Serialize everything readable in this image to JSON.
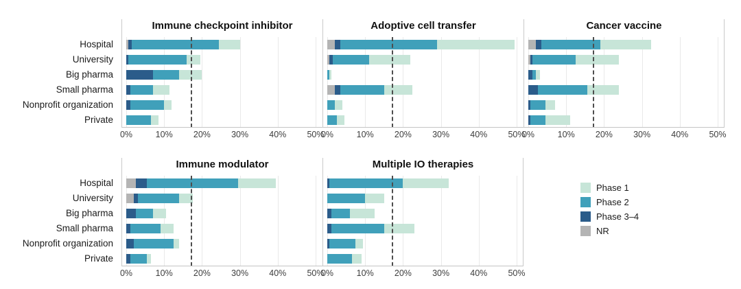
{
  "chart_data": {
    "type": "bar",
    "stacked": true,
    "orientation": "horizontal",
    "categories": [
      "Hospital",
      "University",
      "Big pharma",
      "Small pharma",
      "Nonprofit organization",
      "Private"
    ],
    "series": [
      {
        "name": "NR",
        "color": "#b4b4b4"
      },
      {
        "name": "Phase 3–4",
        "color": "#2b5c8a"
      },
      {
        "name": "Phase 2",
        "color": "#40a0ba"
      },
      {
        "name": "Phase 1",
        "color": "#c7e5d8"
      }
    ],
    "legend_order": [
      "Phase 1",
      "Phase 2",
      "Phase 3–4",
      "NR"
    ],
    "legend_position": "bottom-right",
    "x_tick_labels": [
      "0%",
      "10%",
      "20%",
      "30%",
      "40%",
      "50%"
    ],
    "xlim": [
      0,
      50
    ],
    "unit": "%",
    "grid": true,
    "reference_line_pct": 17,
    "panels": [
      {
        "title": "Immune checkpoint inhibitor",
        "values": [
          [
            0.5,
            1,
            23,
            5.5
          ],
          [
            0,
            0.5,
            15.5,
            3.5
          ],
          [
            0,
            7,
            7,
            6
          ],
          [
            0,
            1,
            6,
            4.5
          ],
          [
            0,
            1,
            9,
            2
          ],
          [
            0,
            0,
            6.5,
            2
          ]
        ]
      },
      {
        "title": "Adoptive cell transfer",
        "values": [
          [
            2,
            1.5,
            25.5,
            20.5
          ],
          [
            0.5,
            1,
            9.5,
            11
          ],
          [
            0,
            0,
            0.5,
            0.5
          ],
          [
            2,
            1.5,
            11.5,
            7.5
          ],
          [
            0,
            0,
            2,
            2
          ],
          [
            0,
            0,
            2.5,
            2
          ]
        ]
      },
      {
        "title": "Cancer vaccine",
        "values": [
          [
            2,
            1.5,
            15.5,
            13.5
          ],
          [
            0.5,
            0.5,
            11.5,
            11.5
          ],
          [
            0,
            1,
            1,
            1
          ],
          [
            0,
            2.5,
            13,
            8.5
          ],
          [
            0,
            0.5,
            4,
            2.5
          ],
          [
            0,
            0.5,
            4,
            6.5
          ]
        ]
      },
      {
        "title": "Immune modulator",
        "values": [
          [
            2.5,
            3,
            24,
            10
          ],
          [
            2,
            1,
            11,
            3.5
          ],
          [
            0,
            2.5,
            4.5,
            3.5
          ],
          [
            0,
            1,
            8,
            3.5
          ],
          [
            0,
            2,
            10.5,
            1.5
          ],
          [
            0,
            1,
            4.5,
            1
          ]
        ]
      },
      {
        "title": "Multiple IO therapies",
        "values": [
          [
            0,
            0.5,
            19.5,
            12
          ],
          [
            0,
            0,
            10,
            5
          ],
          [
            0,
            1,
            5,
            6.5
          ],
          [
            0,
            1,
            14,
            8
          ],
          [
            0,
            0.5,
            7,
            2
          ],
          [
            0,
            0,
            6.5,
            2.5
          ]
        ]
      }
    ]
  }
}
